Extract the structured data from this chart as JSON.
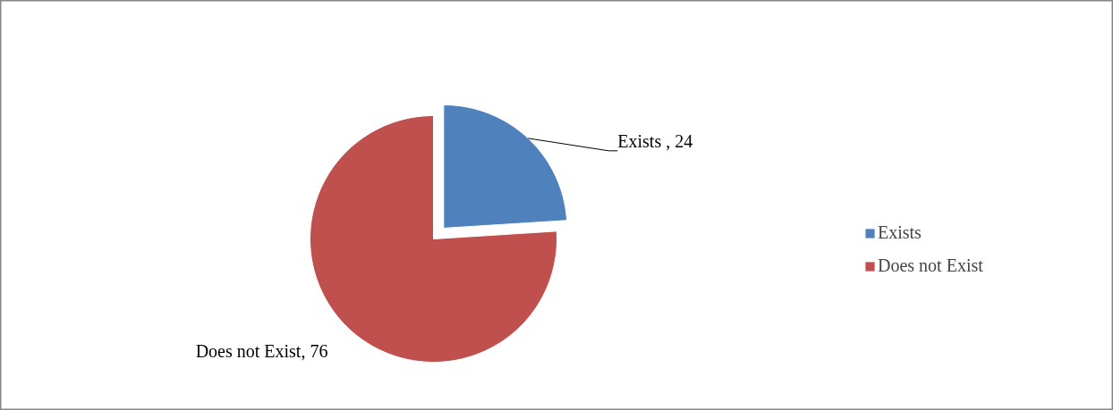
{
  "chart_data": {
    "type": "pie",
    "categories": [
      "Exists",
      "Does not Exist"
    ],
    "values": [
      24,
      76
    ],
    "colors": [
      "#4f81bd",
      "#c0504d"
    ],
    "value_labels": [
      "Exists , 24",
      "Does not Exist, 76"
    ],
    "legend": "right"
  }
}
